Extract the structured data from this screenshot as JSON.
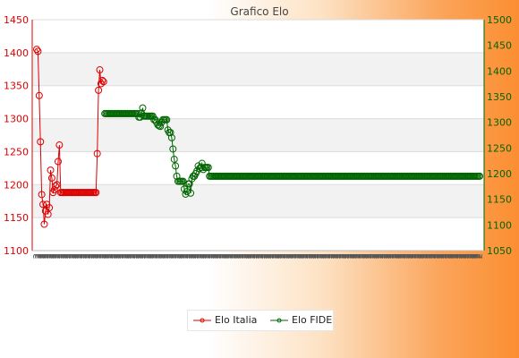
{
  "chart_data": {
    "type": "line",
    "title": "Grafico Elo",
    "y_left": {
      "ylim": [
        1100,
        1450
      ],
      "ticks": [
        1100,
        1150,
        1200,
        1250,
        1300,
        1350,
        1400,
        1450
      ],
      "color": "#dd0000"
    },
    "y_right": {
      "ylim": [
        1050,
        1500
      ],
      "ticks": [
        1050,
        1100,
        1150,
        1200,
        1250,
        1300,
        1350,
        1400,
        1450,
        1500
      ],
      "color": "#006600"
    },
    "grid": true,
    "legend": "bottom",
    "x_tick_labels": [
      "2",
      "2",
      "2",
      "2",
      "2",
      "2",
      "2",
      "2",
      "2",
      "2",
      "2",
      "2",
      "2",
      "2",
      "2",
      "2",
      "2",
      "2",
      "2",
      "2",
      "2",
      "2",
      "2",
      "2",
      "2",
      "2",
      "2",
      "2",
      "2",
      "2",
      "2",
      "2",
      "2",
      "2",
      "2",
      "2",
      "2",
      "2",
      "2",
      "2",
      "2",
      "2",
      "2",
      "2",
      "2",
      "2",
      "2",
      "2",
      "2",
      "2",
      "2",
      "2",
      "2",
      "2",
      "2",
      "2",
      "2",
      "2",
      "2",
      "2",
      "2",
      "2",
      "2",
      "2",
      "2",
      "2",
      "2",
      "2",
      "2",
      "2",
      "2",
      "2",
      "2",
      "2",
      "2",
      "2",
      "2",
      "2",
      "2",
      "2",
      "2",
      "2",
      "2",
      "2",
      "2",
      "2",
      "2",
      "2",
      "2",
      "2",
      "2",
      "2",
      "2",
      "2",
      "2",
      "2",
      "2",
      "2",
      "2",
      "2",
      "2",
      "2",
      "2",
      "2",
      "2",
      "2",
      "2",
      "2",
      "2",
      "2",
      "2",
      "2",
      "2",
      "2",
      "2",
      "2",
      "2",
      "2",
      "2",
      "2",
      "2",
      "2",
      "2",
      "2",
      "2",
      "2",
      "2",
      "2",
      "2",
      "2",
      "2",
      "2",
      "2",
      "2",
      "2",
      "2",
      "2",
      "2",
      "2",
      "2",
      "2",
      "2",
      "2",
      "2",
      "2",
      "2",
      "2",
      "2",
      "2",
      "2",
      "2",
      "2",
      "2",
      "2",
      "2",
      "2",
      "2",
      "2",
      "2",
      "2",
      "2",
      "2",
      "2",
      "2",
      "2",
      "2",
      "2",
      "2",
      "2",
      "2",
      "2",
      "2",
      "2",
      "2",
      "2",
      "2",
      "2",
      "2",
      "2",
      "2",
      "2",
      "2",
      "2",
      "2",
      "2",
      "2",
      "2",
      "2",
      "2",
      "2",
      "2",
      "2",
      "2",
      "2",
      "2",
      "2",
      "2",
      "2",
      "2",
      "2",
      "2",
      "2",
      "2",
      "2",
      "2",
      "2",
      "2",
      "2",
      "2",
      "2",
      "2",
      "2",
      "2",
      "2",
      "2",
      "2",
      "2",
      "2",
      "2",
      "2",
      "2",
      "2",
      "2",
      "2",
      "2",
      "2",
      "2",
      "2",
      "2",
      "2",
      "2",
      "2",
      "2",
      "2",
      "2",
      "2",
      "2",
      "2",
      "2",
      "2",
      "2",
      "2",
      "2",
      "2",
      "2",
      "2",
      "2",
      "2",
      "2",
      "2",
      "2",
      "2",
      "2",
      "2",
      "2",
      "2",
      "2",
      "2",
      "2",
      "2",
      "2",
      "2",
      "2",
      "2",
      "2",
      "2",
      "2",
      "2",
      "2",
      "2",
      "2",
      "2",
      "2",
      "2",
      "2",
      "2",
      "2",
      "2"
    ],
    "series": [
      {
        "name": "Elo Italia",
        "axis": "left",
        "color": "#dd0000",
        "values": [
          1405,
          1402,
          1335,
          1265,
          1185,
          1170,
          1140,
          1160,
          1170,
          1155,
          1165,
          1222,
          1210,
          1188,
          1192,
          1198,
          1200,
          1235,
          1260,
          1188,
          1188,
          1188,
          1188,
          1188,
          1188,
          1188,
          1188,
          1188,
          1188,
          1188,
          1188,
          1188,
          1188,
          1188,
          1188,
          1188,
          1188,
          1188,
          1188,
          1188,
          1188,
          1188,
          1188,
          1188,
          1188,
          1188,
          1188,
          1188,
          1247,
          1343,
          1374,
          1353,
          1358,
          1356
        ]
      },
      {
        "name": "Elo FIDE",
        "axis": "right",
        "color": "#006600",
        "start_index": 54,
        "values": [
          1317,
          1317,
          1317,
          1317,
          1317,
          1317,
          1317,
          1317,
          1317,
          1317,
          1317,
          1317,
          1317,
          1317,
          1317,
          1317,
          1317,
          1317,
          1317,
          1317,
          1317,
          1317,
          1317,
          1317,
          1317,
          1317,
          1317,
          1310,
          1310,
          1318,
          1328,
          1312,
          1312,
          1312,
          1312,
          1312,
          1312,
          1312,
          1312,
          1305,
          1305,
          1300,
          1295,
          1293,
          1292,
          1300,
          1305,
          1305,
          1305,
          1305,
          1285,
          1280,
          1280,
          1270,
          1248,
          1228,
          1215,
          1195,
          1185,
          1185,
          1185,
          1185,
          1185,
          1170,
          1160,
          1165,
          1180,
          1180,
          1162,
          1190,
          1195,
          1195,
          1200,
          1205,
          1215,
          1210,
          1212,
          1220,
          1208,
          1212,
          1212,
          1212,
          1212,
          1195,
          1195,
          1195,
          1195,
          1195,
          1195,
          1195,
          1195,
          1195,
          1195,
          1195,
          1195,
          1195,
          1195,
          1195,
          1195,
          1195,
          1195,
          1195,
          1195,
          1195,
          1195,
          1195,
          1195,
          1195,
          1195,
          1195,
          1195,
          1195,
          1195,
          1195,
          1195,
          1195,
          1195,
          1195,
          1195,
          1195,
          1195,
          1195,
          1195,
          1195,
          1195,
          1195,
          1195,
          1195,
          1195,
          1195,
          1195,
          1195,
          1195,
          1195,
          1195,
          1195,
          1195,
          1195,
          1195,
          1195,
          1195,
          1195,
          1195,
          1195,
          1195,
          1195,
          1195,
          1195,
          1195,
          1195,
          1195,
          1195,
          1195,
          1195,
          1195,
          1195,
          1195,
          1195,
          1195,
          1195,
          1195,
          1195,
          1195,
          1195,
          1195,
          1195,
          1195,
          1195,
          1195,
          1195,
          1195,
          1195,
          1195,
          1195,
          1195,
          1195,
          1195,
          1195,
          1195,
          1195,
          1195,
          1195,
          1195,
          1195,
          1195,
          1195,
          1195,
          1195,
          1195,
          1195,
          1195,
          1195,
          1195,
          1195,
          1195,
          1195,
          1195,
          1195,
          1195,
          1195,
          1195,
          1195,
          1195,
          1195,
          1195,
          1195,
          1195,
          1195,
          1195,
          1195,
          1195,
          1195,
          1195,
          1195,
          1195,
          1195,
          1195,
          1195,
          1195,
          1195,
          1195,
          1195,
          1195,
          1195,
          1195,
          1195,
          1195,
          1195,
          1195,
          1195,
          1195,
          1195,
          1195,
          1195,
          1195,
          1195,
          1195,
          1195,
          1195,
          1195,
          1195,
          1195,
          1195,
          1195,
          1195,
          1195,
          1195,
          1195,
          1195,
          1195,
          1195,
          1195,
          1195,
          1195,
          1195,
          1195,
          1195,
          1195,
          1195,
          1195,
          1195,
          1195,
          1195,
          1195,
          1195,
          1195,
          1195,
          1195,
          1195,
          1195,
          1195,
          1195,
          1195,
          1195,
          1195,
          1195,
          1195,
          1195,
          1195,
          1195,
          1195,
          1195,
          1195,
          1195,
          1195,
          1195,
          1195,
          1195,
          1195,
          1195,
          1195,
          1195,
          1195,
          1195,
          1195,
          1195,
          1195,
          1195
        ]
      }
    ]
  }
}
